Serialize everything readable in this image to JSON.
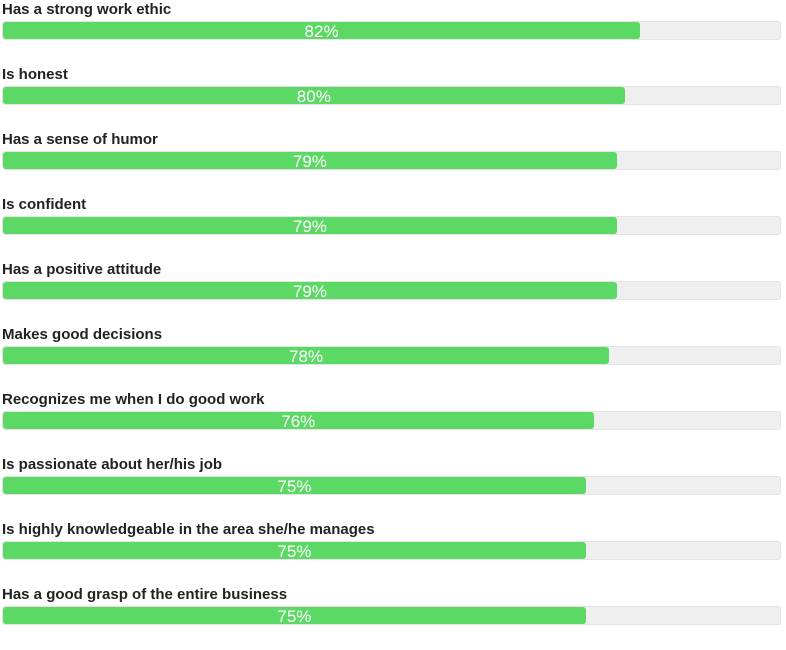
{
  "chart_data": {
    "type": "bar",
    "orientation": "horizontal",
    "ylim": [
      0,
      100
    ],
    "bar_color": "#5cd964",
    "track_color": "#efefef",
    "categories": [
      "Has a strong work ethic",
      "Is honest",
      "Has a sense of humor",
      "Is confident",
      "Has a positive attitude",
      "Makes good decisions",
      "Recognizes me when I do good work",
      "Is passionate about her/his job",
      "Is highly knowledgeable in the area she/he manages",
      "Has a good grasp of the entire business"
    ],
    "values": [
      82,
      80,
      79,
      79,
      79,
      78,
      76,
      75,
      75,
      75
    ],
    "value_labels": [
      "82%",
      "80%",
      "79%",
      "79%",
      "79%",
      "78%",
      "76%",
      "75%",
      "75%",
      "75%"
    ]
  }
}
